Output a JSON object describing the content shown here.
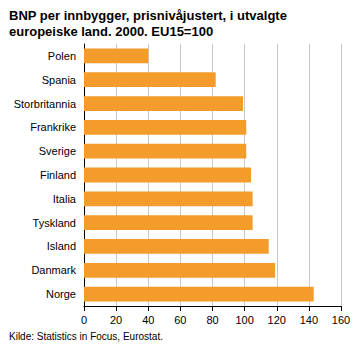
{
  "chart_data": {
    "type": "bar",
    "orientation": "horizontal",
    "title": "BNP per innbygger, prisnivåjustert, i utvalgte europeiske land. 2000. EU15=100",
    "source": "Kilde: Statistics in Focus, Eurostat.",
    "categories": [
      "Polen",
      "Spania",
      "Storbritannia",
      "Frankrike",
      "Sverige",
      "Finland",
      "Italia",
      "Tyskland",
      "Island",
      "Danmark",
      "Norge"
    ],
    "values": [
      40,
      82,
      99,
      101,
      101,
      104,
      105,
      105,
      115,
      119,
      143
    ],
    "color": "#f39c2b",
    "xlim": [
      0,
      160
    ],
    "xticks": [
      0,
      20,
      40,
      60,
      80,
      100,
      120,
      140,
      160
    ],
    "grid": true
  }
}
